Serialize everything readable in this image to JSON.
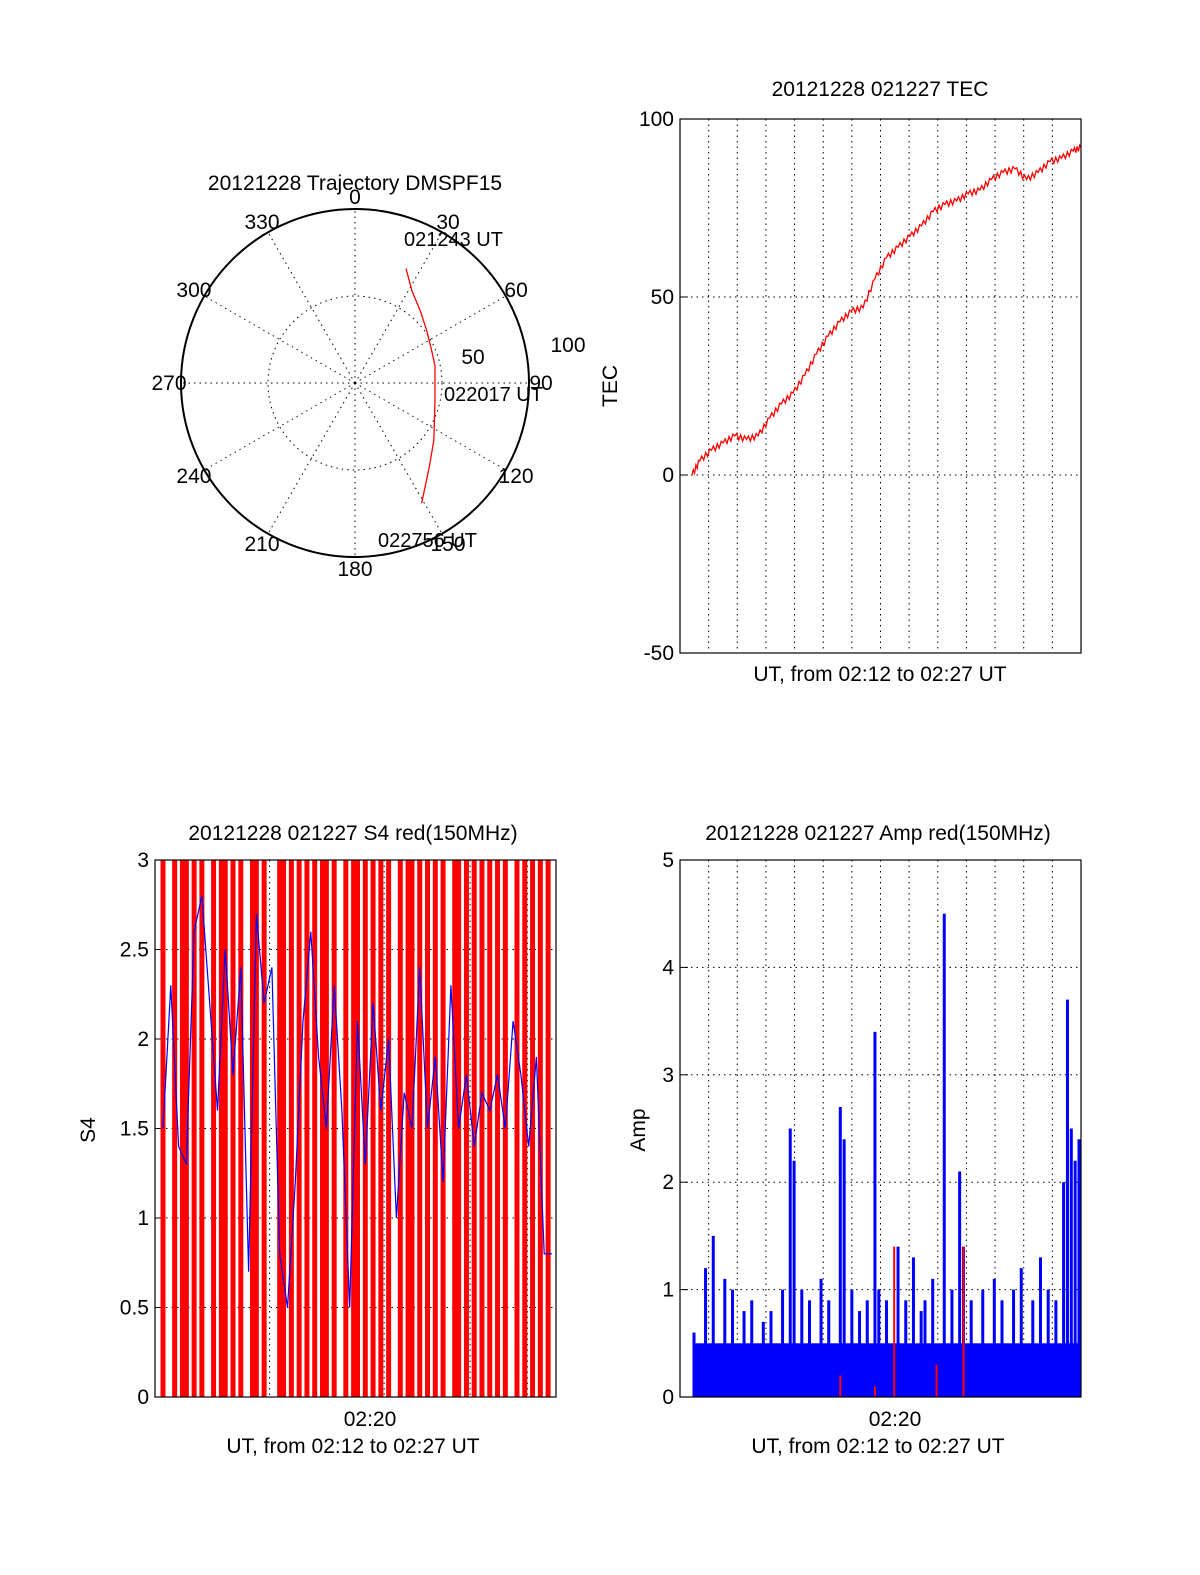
{
  "colors": {
    "red": "#ff0000",
    "blue": "#0000ff",
    "axis": "#000000",
    "grid": "#000000"
  },
  "chart_data": [
    {
      "type": "polar",
      "title": "20121228 Trajectory DMSPF15",
      "angle_labels": [
        "0",
        "30",
        "60",
        "90",
        "120",
        "150",
        "180",
        "210",
        "240",
        "270",
        "300",
        "330"
      ],
      "radius_labels": [
        "50",
        "100"
      ],
      "rlim": [
        0,
        100
      ],
      "annotations": [
        "021243 UT",
        "022017 UT",
        "022756 UT"
      ],
      "series": [
        {
          "color": "#ff0000",
          "points": [
            {
              "az": 24,
              "r": 72
            },
            {
              "az": 32,
              "r": 62
            },
            {
              "az": 42,
              "r": 56
            },
            {
              "az": 54,
              "r": 51
            },
            {
              "az": 66,
              "r": 48
            },
            {
              "az": 78,
              "r": 47
            },
            {
              "az": 90,
              "r": 46
            },
            {
              "az": 102,
              "r": 47
            },
            {
              "az": 114,
              "r": 50
            },
            {
              "az": 126,
              "r": 56
            },
            {
              "az": 138,
              "r": 64
            },
            {
              "az": 146,
              "r": 72
            },
            {
              "az": 151,
              "r": 79
            }
          ]
        }
      ]
    },
    {
      "type": "line",
      "title": "20121228 021227 TEC",
      "xlabel": "UT, from 02:12 to 02:27 UT",
      "ylabel": "TEC",
      "ylim": [
        -50,
        100
      ],
      "yticks": [
        "-50",
        "0",
        "50",
        "100"
      ],
      "grid": true,
      "series": [
        {
          "color": "#ff0000",
          "x": [
            0.0,
            0.02,
            0.05,
            0.08,
            0.11,
            0.14,
            0.17,
            0.2,
            0.23,
            0.26,
            0.29,
            0.32,
            0.35,
            0.38,
            0.41,
            0.44,
            0.47,
            0.5,
            0.53,
            0.56,
            0.59,
            0.62,
            0.65,
            0.68,
            0.71,
            0.74,
            0.77,
            0.8,
            0.83,
            0.86,
            0.89,
            0.92,
            0.95,
            0.98,
            1.0
          ],
          "y": [
            0,
            4,
            7,
            9,
            11,
            10,
            11,
            16,
            20,
            23,
            28,
            34,
            39,
            43,
            46,
            47,
            55,
            61,
            64,
            67,
            70,
            74,
            76,
            77,
            79,
            80,
            83,
            85,
            86,
            83,
            85,
            88,
            89,
            91,
            92
          ]
        }
      ]
    },
    {
      "type": "bar",
      "title": "20121228 021227 S4 red(150MHz)",
      "xlabel": "UT, from 02:12 to 02:27 UT",
      "ylabel": "S4",
      "xtick_label": "02:20",
      "ylim": [
        0,
        3
      ],
      "yticks": [
        "0",
        "0.5",
        "1",
        "1.5",
        "2",
        "2.5",
        "3"
      ],
      "grid": true,
      "series": [
        {
          "name": "",
          "color": "#ff0000",
          "x": [
            0.0,
            0.03,
            0.05,
            0.06,
            0.08,
            0.1,
            0.13,
            0.15,
            0.16,
            0.18,
            0.2,
            0.23,
            0.24,
            0.26,
            0.3,
            0.31,
            0.33,
            0.35,
            0.37,
            0.39,
            0.41,
            0.42,
            0.44,
            0.47,
            0.49,
            0.5,
            0.52,
            0.54,
            0.56,
            0.58,
            0.61,
            0.63,
            0.64,
            0.66,
            0.68,
            0.7,
            0.72,
            0.75,
            0.76,
            0.78,
            0.8,
            0.82,
            0.84,
            0.86,
            0.88,
            0.91,
            0.93,
            0.95,
            0.97,
            0.99
          ],
          "values": [
            3,
            3,
            3,
            3,
            3,
            3,
            3,
            3,
            3,
            3,
            3,
            3,
            3,
            3,
            3,
            3,
            3,
            3,
            3,
            3,
            3,
            3,
            3,
            3,
            3,
            3,
            3,
            3,
            3,
            3,
            3,
            3,
            3,
            3,
            3,
            3,
            3,
            3,
            3,
            3,
            3,
            3,
            3,
            3,
            3,
            3,
            3,
            3,
            3,
            3
          ]
        },
        {
          "name": "",
          "color": "#0000ff",
          "x": [
            0.0,
            0.02,
            0.04,
            0.06,
            0.08,
            0.1,
            0.12,
            0.14,
            0.16,
            0.18,
            0.2,
            0.22,
            0.24,
            0.26,
            0.28,
            0.3,
            0.32,
            0.34,
            0.36,
            0.38,
            0.4,
            0.42,
            0.44,
            0.46,
            0.48,
            0.5,
            0.52,
            0.54,
            0.56,
            0.58,
            0.6,
            0.62,
            0.64,
            0.66,
            0.68,
            0.7,
            0.72,
            0.74,
            0.76,
            0.78,
            0.8,
            0.82,
            0.84,
            0.86,
            0.88,
            0.9,
            0.92,
            0.94,
            0.96,
            0.98,
            1.0
          ],
          "y": [
            1.5,
            2.3,
            1.4,
            1.3,
            2.6,
            2.8,
            2.2,
            1.6,
            2.5,
            1.8,
            2.4,
            0.7,
            2.7,
            2.2,
            2.4,
            0.8,
            0.5,
            1.2,
            2.1,
            2.6,
            1.9,
            1.5,
            2.3,
            1.6,
            0.5,
            2.1,
            1.3,
            2.2,
            1.6,
            2.0,
            1.0,
            1.7,
            1.5,
            2.4,
            1.5,
            1.9,
            1.2,
            2.3,
            1.5,
            1.8,
            1.4,
            1.7,
            1.6,
            1.8,
            1.5,
            2.1,
            1.8,
            1.4,
            1.9,
            0.8,
            0.8
          ]
        }
      ]
    },
    {
      "type": "bar",
      "title": "20121228 021227 Amp red(150MHz)",
      "xlabel": "UT, from 02:12 to 02:27 UT",
      "ylabel": "Amp",
      "xtick_label": "02:20",
      "ylim": [
        0,
        5
      ],
      "yticks": [
        "0",
        "1",
        "2",
        "3",
        "4",
        "5"
      ],
      "grid": true,
      "series": [
        {
          "name": "",
          "color": "#0000ff",
          "x": [
            0.0,
            0.03,
            0.05,
            0.08,
            0.1,
            0.13,
            0.15,
            0.18,
            0.2,
            0.23,
            0.25,
            0.26,
            0.28,
            0.3,
            0.33,
            0.35,
            0.38,
            0.39,
            0.41,
            0.43,
            0.45,
            0.47,
            0.48,
            0.5,
            0.53,
            0.55,
            0.57,
            0.59,
            0.6,
            0.62,
            0.65,
            0.67,
            0.69,
            0.7,
            0.72,
            0.75,
            0.78,
            0.8,
            0.83,
            0.85,
            0.88,
            0.9,
            0.92,
            0.94,
            0.96,
            0.97,
            0.98,
            0.99,
            1.0
          ],
          "values": [
            0.6,
            1.2,
            1.5,
            1.1,
            1.0,
            0.8,
            0.9,
            0.7,
            0.8,
            1.0,
            2.5,
            2.2,
            1.0,
            0.9,
            1.1,
            0.9,
            2.7,
            2.4,
            1.0,
            0.8,
            0.9,
            3.4,
            1.0,
            0.9,
            1.4,
            0.9,
            1.3,
            0.8,
            0.9,
            1.1,
            4.5,
            1.0,
            2.1,
            1.4,
            0.9,
            1.0,
            1.1,
            0.9,
            1.0,
            1.2,
            0.9,
            1.3,
            1.0,
            0.9,
            2.0,
            3.7,
            2.5,
            2.2,
            2.4
          ]
        },
        {
          "name": "",
          "color": "#ff0000",
          "x": [
            0.38,
            0.47,
            0.52,
            0.63,
            0.7
          ],
          "values": [
            0.2,
            0.1,
            1.4,
            0.3,
            1.4
          ]
        }
      ]
    }
  ]
}
